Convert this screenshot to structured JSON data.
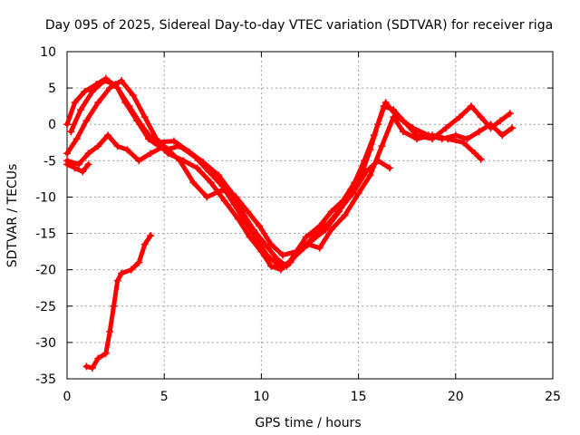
{
  "chart_data": {
    "type": "scatter",
    "title": "Day 095 of 2025, Sidereal Day-to-day VTEC variation (SDTVAR) for receiver riga",
    "xlabel": "GPS time / hours",
    "ylabel": "SDTVAR / TECUs",
    "xlim": [
      0,
      25
    ],
    "ylim": [
      -35,
      10
    ],
    "xticks": [
      "0",
      "5",
      "10",
      "15",
      "20",
      "25"
    ],
    "yticks": [
      "10",
      "5",
      "0",
      "-5",
      "-10",
      "-15",
      "-20",
      "-25",
      "-30",
      "-35"
    ],
    "grid": true,
    "marker": "+",
    "color": "#ff0000",
    "series": [
      {
        "name": "track-1",
        "points": [
          [
            0.0,
            0.0
          ],
          [
            0.4,
            3.0
          ],
          [
            0.9,
            4.5
          ],
          [
            1.5,
            5.5
          ],
          [
            2.0,
            6.3
          ],
          [
            2.6,
            5.0
          ],
          [
            3.2,
            2.5
          ],
          [
            3.8,
            0.0
          ],
          [
            4.5,
            -2.5
          ],
          [
            5.5,
            -2.3
          ],
          [
            6.3,
            -3.8
          ],
          [
            7.0,
            -5.2
          ],
          [
            7.8,
            -7.0
          ],
          [
            8.5,
            -9.5
          ],
          [
            9.0,
            -12.0
          ],
          [
            9.6,
            -14.5
          ],
          [
            10.2,
            -16.5
          ],
          [
            10.8,
            -18.5
          ],
          [
            11.3,
            -19.5
          ],
          [
            11.8,
            -17.5
          ],
          [
            12.3,
            -15.5
          ],
          [
            13.0,
            -14.0
          ],
          [
            13.6,
            -12.0
          ],
          [
            14.2,
            -10.5
          ],
          [
            14.8,
            -8.0
          ],
          [
            15.3,
            -5.0
          ],
          [
            15.8,
            -1.5
          ],
          [
            16.3,
            2.5
          ],
          [
            16.8,
            2.0
          ],
          [
            17.3,
            0.5
          ],
          [
            18.0,
            -1.5
          ],
          [
            18.8,
            -2.0
          ],
          [
            19.5,
            -0.5
          ],
          [
            20.2,
            1.0
          ],
          [
            20.8,
            2.5
          ],
          [
            21.3,
            1.0
          ],
          [
            21.8,
            -0.5
          ],
          [
            22.3,
            0.5
          ],
          [
            22.8,
            1.5
          ]
        ]
      },
      {
        "name": "track-2",
        "points": [
          [
            0.2,
            -1.0
          ],
          [
            0.7,
            2.0
          ],
          [
            1.3,
            4.5
          ],
          [
            1.9,
            6.0
          ],
          [
            2.5,
            5.5
          ],
          [
            3.0,
            3.0
          ],
          [
            3.6,
            0.5
          ],
          [
            4.2,
            -2.0
          ],
          [
            5.0,
            -3.5
          ],
          [
            5.8,
            -3.0
          ],
          [
            6.6,
            -4.5
          ],
          [
            7.3,
            -6.5
          ],
          [
            8.0,
            -8.5
          ],
          [
            8.6,
            -11.0
          ],
          [
            9.2,
            -13.5
          ],
          [
            9.8,
            -16.0
          ],
          [
            10.3,
            -18.0
          ],
          [
            10.9,
            -19.5
          ],
          [
            11.5,
            -19.0
          ],
          [
            12.0,
            -17.0
          ],
          [
            12.6,
            -16.0
          ],
          [
            13.3,
            -14.5
          ],
          [
            14.0,
            -12.0
          ],
          [
            14.6,
            -9.0
          ],
          [
            15.2,
            -6.5
          ],
          [
            15.6,
            -3.5
          ],
          [
            16.0,
            0.0
          ],
          [
            16.4,
            3.0
          ],
          [
            17.0,
            1.0
          ],
          [
            17.8,
            -0.5
          ],
          [
            18.6,
            -1.5
          ],
          [
            19.3,
            -2.0
          ],
          [
            20.0,
            -1.5
          ],
          [
            20.6,
            -2.0
          ],
          [
            21.2,
            -1.0
          ],
          [
            21.8,
            0.0
          ],
          [
            22.4,
            -1.5
          ],
          [
            22.9,
            -0.5
          ]
        ]
      },
      {
        "name": "track-3",
        "points": [
          [
            0.0,
            -4.0
          ],
          [
            0.5,
            -2.0
          ],
          [
            1.0,
            0.5
          ],
          [
            1.6,
            3.0
          ],
          [
            2.2,
            5.0
          ],
          [
            2.8,
            6.0
          ],
          [
            3.4,
            4.0
          ],
          [
            4.0,
            1.0
          ],
          [
            4.6,
            -2.0
          ],
          [
            5.2,
            -4.0
          ],
          [
            6.0,
            -5.0
          ],
          [
            6.7,
            -6.0
          ],
          [
            7.4,
            -8.0
          ],
          [
            8.1,
            -10.5
          ],
          [
            8.8,
            -13.0
          ],
          [
            9.4,
            -15.5
          ],
          [
            10.0,
            -17.5
          ],
          [
            10.5,
            -19.5
          ],
          [
            11.0,
            -20.0
          ],
          [
            11.6,
            -18.5
          ],
          [
            12.2,
            -17.0
          ],
          [
            12.8,
            -15.0
          ],
          [
            13.5,
            -13.5
          ],
          [
            14.1,
            -11.5
          ],
          [
            14.7,
            -9.5
          ],
          [
            15.4,
            -6.5
          ],
          [
            16.0,
            -5.0
          ],
          [
            16.6,
            -6.0
          ]
        ]
      },
      {
        "name": "track-4",
        "points": [
          [
            0.0,
            -5.0
          ],
          [
            0.6,
            -5.5
          ],
          [
            1.1,
            -4.0
          ],
          [
            1.6,
            -3.0
          ],
          [
            2.1,
            -1.5
          ],
          [
            2.6,
            -3.0
          ],
          [
            3.1,
            -3.5
          ],
          [
            3.7,
            -5.0
          ],
          [
            4.3,
            -4.0
          ],
          [
            5.0,
            -3.0
          ],
          [
            5.8,
            -5.0
          ],
          [
            6.5,
            -8.0
          ],
          [
            7.2,
            -10.0
          ],
          [
            8.0,
            -9.0
          ],
          [
            8.7,
            -10.0
          ],
          [
            9.3,
            -12.0
          ],
          [
            9.9,
            -14.0
          ],
          [
            10.5,
            -16.5
          ],
          [
            11.1,
            -18.0
          ],
          [
            11.8,
            -17.5
          ],
          [
            12.4,
            -16.5
          ],
          [
            13.0,
            -17.0
          ],
          [
            13.6,
            -14.5
          ],
          [
            14.3,
            -12.5
          ],
          [
            15.0,
            -9.5
          ],
          [
            15.6,
            -7.0
          ],
          [
            16.2,
            -3.0
          ],
          [
            16.8,
            1.0
          ],
          [
            17.3,
            -1.0
          ],
          [
            18.0,
            -2.0
          ],
          [
            18.8,
            -1.5
          ],
          [
            19.6,
            -2.0
          ],
          [
            20.4,
            -2.5
          ],
          [
            21.0,
            -4.0
          ],
          [
            21.3,
            -4.8
          ]
        ]
      },
      {
        "name": "track-5",
        "points": [
          [
            0.0,
            -5.5
          ],
          [
            0.4,
            -6.0
          ],
          [
            0.8,
            -6.5
          ],
          [
            1.1,
            -5.5
          ]
        ]
      },
      {
        "name": "track-6",
        "points": [
          [
            1.0,
            -33.3
          ],
          [
            1.3,
            -33.5
          ],
          [
            1.6,
            -32.2
          ],
          [
            2.0,
            -31.5
          ],
          [
            2.2,
            -28.5
          ],
          [
            2.4,
            -25.0
          ],
          [
            2.6,
            -21.5
          ],
          [
            2.8,
            -20.5
          ],
          [
            3.3,
            -20.0
          ],
          [
            3.7,
            -19.0
          ],
          [
            4.0,
            -16.5
          ],
          [
            4.3,
            -15.3
          ]
        ]
      }
    ]
  }
}
